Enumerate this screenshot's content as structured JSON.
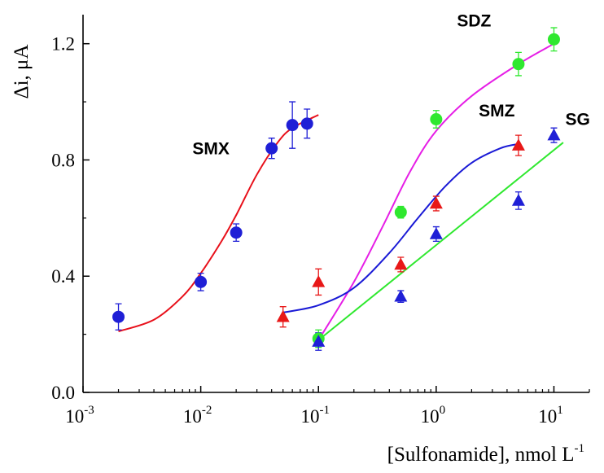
{
  "chart_data": {
    "type": "scatter",
    "title": "",
    "xlabel": "[Sulfonamide], nmol L",
    "xlabel_sup": "-1",
    "ylabel": "Δi, μA",
    "xscale": "log",
    "xlim": [
      0.001,
      20
    ],
    "ylim": [
      0.0,
      1.3
    ],
    "x_ticks": [
      {
        "value": 0.001,
        "base": "10",
        "exp": "-3"
      },
      {
        "value": 0.01,
        "base": "10",
        "exp": "-2"
      },
      {
        "value": 0.1,
        "base": "10",
        "exp": "-1"
      },
      {
        "value": 1,
        "base": "10",
        "exp": "0"
      },
      {
        "value": 10,
        "base": "10",
        "exp": "1"
      }
    ],
    "y_ticks": [
      {
        "value": 0.0,
        "label": "0.0"
      },
      {
        "value": 0.4,
        "label": "0.4"
      },
      {
        "value": 0.8,
        "label": "0.8"
      },
      {
        "value": 1.2,
        "label": "1.2"
      }
    ],
    "grid": false,
    "legend": "none",
    "series": [
      {
        "name": "SMX",
        "marker": "circle",
        "marker_color": "#1f1fd6",
        "points": [
          {
            "x": 0.002,
            "y": 0.26,
            "err": 0.045
          },
          {
            "x": 0.01,
            "y": 0.38,
            "err": 0.03
          },
          {
            "x": 0.02,
            "y": 0.55,
            "err": 0.03
          },
          {
            "x": 0.04,
            "y": 0.84,
            "err": 0.035
          },
          {
            "x": 0.06,
            "y": 0.92,
            "err": 0.08
          },
          {
            "x": 0.08,
            "y": 0.925,
            "err": 0.05
          }
        ],
        "fit_color": "#e8101a",
        "fit": [
          {
            "x": 0.002,
            "y": 0.21
          },
          {
            "x": 0.004,
            "y": 0.25
          },
          {
            "x": 0.007,
            "y": 0.33
          },
          {
            "x": 0.01,
            "y": 0.41
          },
          {
            "x": 0.015,
            "y": 0.52
          },
          {
            "x": 0.02,
            "y": 0.61
          },
          {
            "x": 0.03,
            "y": 0.75
          },
          {
            "x": 0.045,
            "y": 0.86
          },
          {
            "x": 0.06,
            "y": 0.91
          },
          {
            "x": 0.1,
            "y": 0.955
          }
        ]
      },
      {
        "name": "SDZ",
        "marker": "circle",
        "marker_color": "#2fe82f",
        "points": [
          {
            "x": 0.1,
            "y": 0.185,
            "err": 0.03
          },
          {
            "x": 0.5,
            "y": 0.62,
            "err": 0.02
          },
          {
            "x": 1,
            "y": 0.94,
            "err": 0.03
          },
          {
            "x": 5,
            "y": 1.13,
            "err": 0.04
          },
          {
            "x": 10,
            "y": 1.215,
            "err": 0.04
          }
        ],
        "fit_color": "#e61ee6",
        "fit": [
          {
            "x": 0.1,
            "y": 0.18
          },
          {
            "x": 0.2,
            "y": 0.38
          },
          {
            "x": 0.35,
            "y": 0.57
          },
          {
            "x": 0.6,
            "y": 0.76
          },
          {
            "x": 1,
            "y": 0.9
          },
          {
            "x": 2,
            "y": 1.02
          },
          {
            "x": 5,
            "y": 1.13
          },
          {
            "x": 10,
            "y": 1.2
          },
          {
            "x": 11,
            "y": 1.21
          }
        ]
      },
      {
        "name": "SMZ",
        "marker": "triangle",
        "marker_color": "#e81818",
        "points": [
          {
            "x": 0.05,
            "y": 0.26,
            "err": 0.035
          },
          {
            "x": 0.1,
            "y": 0.38,
            "err": 0.045
          },
          {
            "x": 0.5,
            "y": 0.44,
            "err": 0.025
          },
          {
            "x": 1,
            "y": 0.65,
            "err": 0.025
          },
          {
            "x": 5,
            "y": 0.85,
            "err": 0.035
          }
        ],
        "fit_color": "#1a1ad6",
        "fit": [
          {
            "x": 0.05,
            "y": 0.275
          },
          {
            "x": 0.1,
            "y": 0.3
          },
          {
            "x": 0.2,
            "y": 0.36
          },
          {
            "x": 0.4,
            "y": 0.48
          },
          {
            "x": 0.7,
            "y": 0.6
          },
          {
            "x": 1.2,
            "y": 0.71
          },
          {
            "x": 2,
            "y": 0.79
          },
          {
            "x": 3.5,
            "y": 0.84
          },
          {
            "x": 5,
            "y": 0.855
          }
        ]
      },
      {
        "name": "SG",
        "marker": "triangle",
        "marker_color": "#1f1fd6",
        "points": [
          {
            "x": 0.1,
            "y": 0.175,
            "err": 0.03
          },
          {
            "x": 0.5,
            "y": 0.33,
            "err": 0.02
          },
          {
            "x": 1,
            "y": 0.545,
            "err": 0.025
          },
          {
            "x": 5,
            "y": 0.66,
            "err": 0.03
          },
          {
            "x": 10,
            "y": 0.885,
            "err": 0.025
          }
        ],
        "fit_color": "#2fe82f",
        "fit": [
          {
            "x": 0.1,
            "y": 0.18
          },
          {
            "x": 12,
            "y": 0.86
          }
        ]
      }
    ],
    "annotations": [
      {
        "text": "SMX",
        "x": 0.0085,
        "y": 0.82
      },
      {
        "text": "SDZ",
        "x": 1.5,
        "y": 1.26
      },
      {
        "text": "SMZ",
        "x": 2.3,
        "y": 0.95
      },
      {
        "text": "SG",
        "x": 12.5,
        "y": 0.92
      }
    ]
  }
}
